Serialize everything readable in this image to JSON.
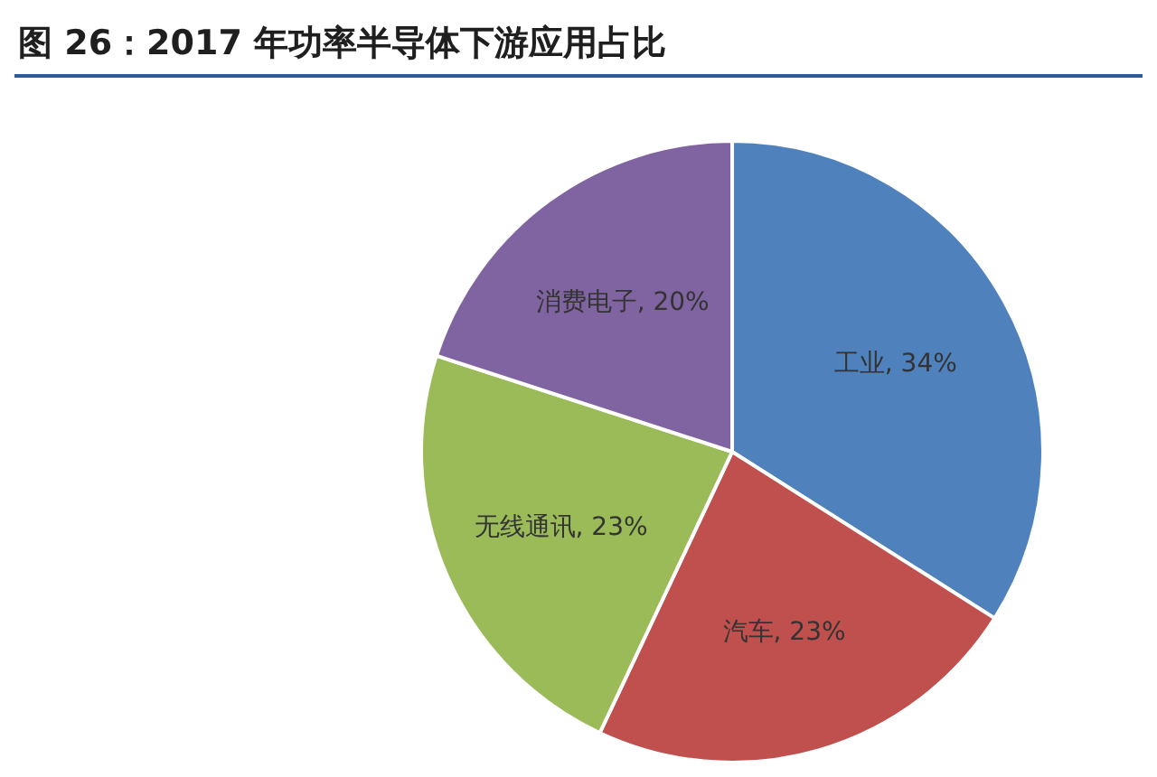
{
  "chart_data": {
    "type": "pie",
    "title": "图 26：2017 年功率半导体下游应用占比",
    "categories": [
      "工业",
      "汽车",
      "无线通讯",
      "消费电子"
    ],
    "values": [
      34,
      23,
      23,
      20
    ],
    "value_labels": [
      "34%",
      "23%",
      "23%",
      "20%"
    ],
    "colors": [
      "#4f81bd",
      "#c0504d",
      "#9bbb59",
      "#8064a2"
    ]
  }
}
